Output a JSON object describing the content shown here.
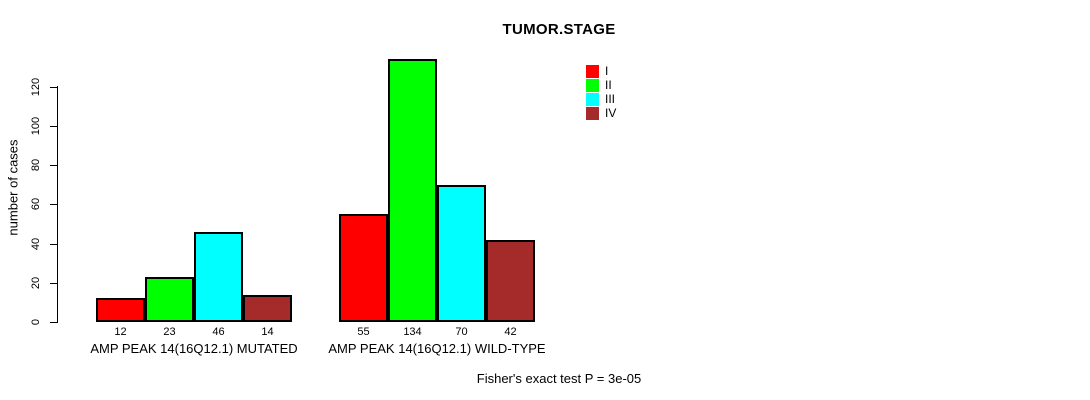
{
  "title": "TUMOR.STAGE",
  "footer": "Fisher's exact test P = 3e-05",
  "y_axis": {
    "label": "number of cases",
    "ticks": [
      0,
      20,
      40,
      60,
      80,
      100,
      120
    ]
  },
  "legend": {
    "position": "top-right",
    "entries": [
      {
        "label": "I",
        "color": "#ff0000"
      },
      {
        "label": "II",
        "color": "#00ff00"
      },
      {
        "label": "III",
        "color": "#00ffff"
      },
      {
        "label": "IV",
        "color": "#a52a2a"
      }
    ]
  },
  "chart_data": {
    "type": "bar",
    "title": "TUMOR.STAGE",
    "xlabel": "",
    "ylabel": "number of cases",
    "ylim": [
      0,
      134
    ],
    "y_ticks": [
      0,
      20,
      40,
      60,
      80,
      100,
      120
    ],
    "grid": false,
    "legend_position": "top-right",
    "categories": [
      "AMP PEAK 14(16Q12.1) MUTATED",
      "AMP PEAK 14(16Q12.1) WILD-TYPE"
    ],
    "series": [
      {
        "name": "I",
        "color": "#ff0000",
        "values": [
          12,
          55
        ]
      },
      {
        "name": "II",
        "color": "#00ff00",
        "values": [
          23,
          134
        ]
      },
      {
        "name": "III",
        "color": "#00ffff",
        "values": [
          46,
          70
        ]
      },
      {
        "name": "IV",
        "color": "#a52a2a",
        "values": [
          14,
          42
        ]
      }
    ],
    "bar_value_labels": [
      [
        12,
        23,
        46,
        14
      ],
      [
        55,
        134,
        70,
        42
      ]
    ],
    "annotation": "Fisher's exact test P = 3e-05"
  }
}
